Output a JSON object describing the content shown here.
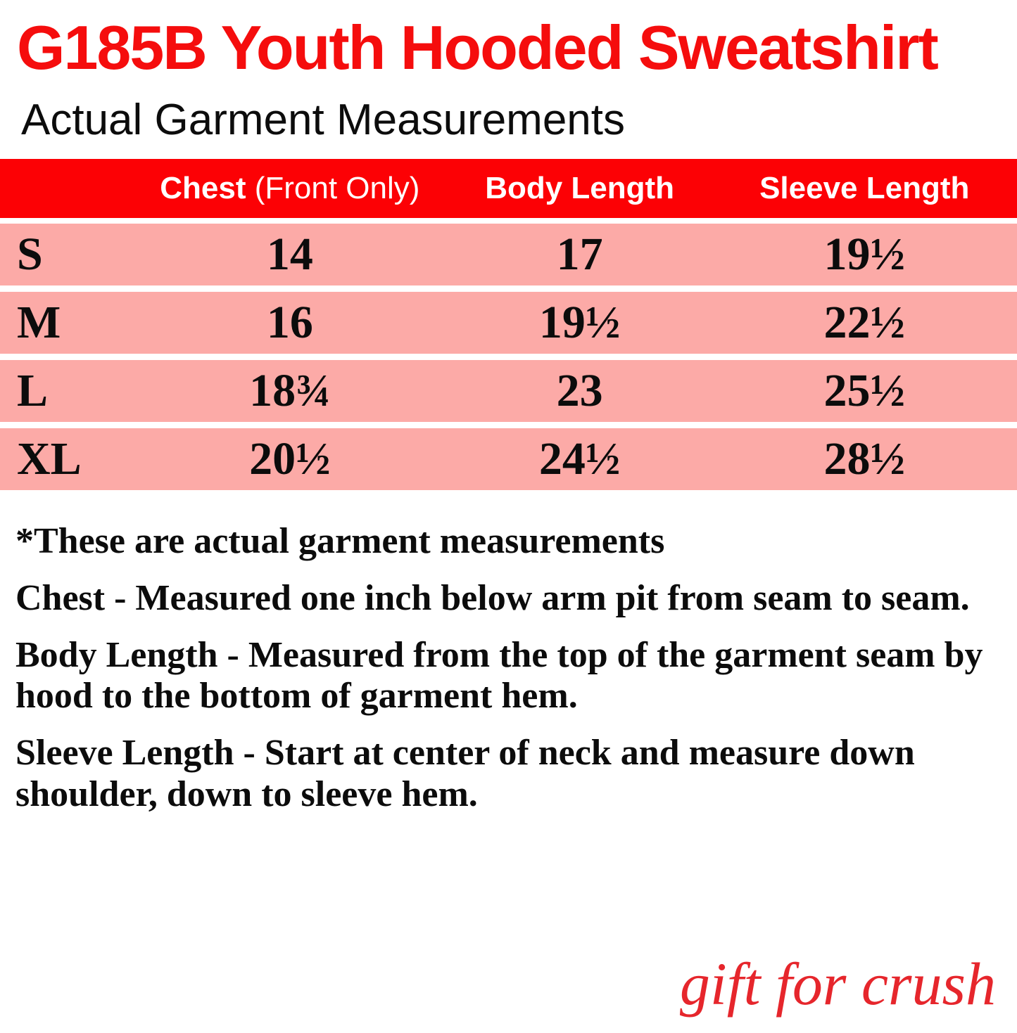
{
  "page": {
    "title": "G185B Youth Hooded Sweatshirt",
    "subtitle": "Actual Garment Measurements",
    "watermark": "gift for crush"
  },
  "colors": {
    "title_red": "#f50d0d",
    "header_red": "#fc0105",
    "row_pink": "#fcaaa7",
    "watermark_red": "#e6262c",
    "header_text": "#ffffff",
    "body_text": "#0c0c0c"
  },
  "size_chart": {
    "header": {
      "size": "",
      "chest": "Chest",
      "chest_note": " (Front Only)",
      "body_length": "Body Length",
      "sleeve_length": "Sleeve Length"
    },
    "rows": [
      {
        "size": "S",
        "chest": "14",
        "body_length": "17",
        "sleeve_length": "19½"
      },
      {
        "size": "M",
        "chest": "16",
        "body_length": "19½",
        "sleeve_length": "22½"
      },
      {
        "size": "L",
        "chest": "18¾",
        "body_length": "23",
        "sleeve_length": "25½"
      },
      {
        "size": "XL",
        "chest": "20½",
        "body_length": "24½",
        "sleeve_length": "28½"
      }
    ]
  },
  "notes": [
    "*These are actual garment measurements",
    "Chest - Measured one inch below arm pit from seam to seam.",
    "Body Length - Measured from the top of the garment seam by hood to the bottom of garment hem.",
    "Sleeve Length - Start at center of neck and measure down shoulder, down to sleeve hem."
  ]
}
